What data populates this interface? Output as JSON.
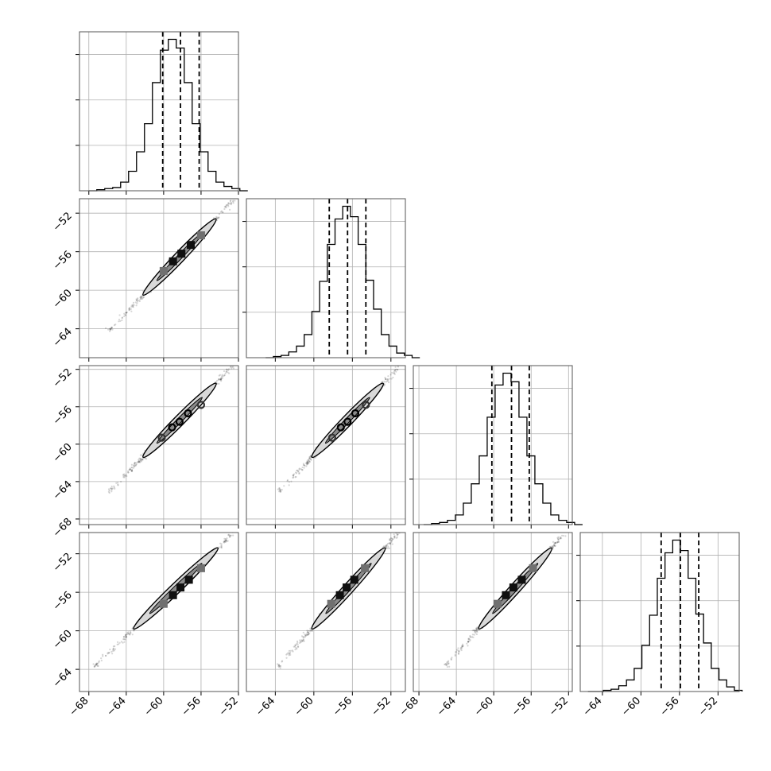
{
  "chart_data": {
    "type": "scatter",
    "figure_kind": "corner plot",
    "n_parameters": 4,
    "title": "",
    "grid": true,
    "tick_labels": {
      "x_col0": [
        "−68",
        "−64",
        "−60",
        "−56",
        "−52"
      ],
      "x_col1": [
        "−64",
        "−60",
        "−56",
        "−52"
      ],
      "x_col2": [
        "−68",
        "−64",
        "−60",
        "−56",
        "−52"
      ],
      "x_col3": [
        "−64",
        "−60",
        "−56",
        "−52"
      ],
      "y_row1": [
        "−52",
        "−56",
        "−60",
        "−64"
      ],
      "y_row2": [
        "−52",
        "−56",
        "−60",
        "−64",
        "−68"
      ],
      "y_row3": [
        "−52",
        "−56",
        "−60",
        "−64"
      ]
    },
    "parameters": [
      {
        "range": [
          -69,
          -52
        ],
        "quantiles": [
          -60.1,
          -58.2,
          -56.2
        ],
        "histogram": {
          "bin_start": -68.0,
          "bin_width": 0.85,
          "counts": [
            0,
            1,
            2,
            3,
            8,
            18,
            36,
            62,
            100,
            130,
            140,
            132,
            100,
            62,
            36,
            18,
            8,
            4,
            2,
            0
          ]
        }
      },
      {
        "range": [
          -67,
          -50.5
        ],
        "quantiles": [
          -58.4,
          -56.5,
          -54.6
        ],
        "histogram": {
          "bin_start": -65.0,
          "bin_width": 0.8,
          "counts": [
            0,
            1,
            2,
            5,
            10,
            20,
            40,
            66,
            98,
            120,
            131,
            122,
            98,
            67,
            42,
            20,
            10,
            4,
            2,
            0
          ]
        }
      },
      {
        "range": [
          -68.6,
          -51.6
        ],
        "quantiles": [
          -60.2,
          -58.1,
          -56.2
        ],
        "histogram": {
          "bin_start": -67.5,
          "bin_width": 0.85,
          "counts": [
            0,
            1,
            2,
            4,
            9,
            20,
            38,
            64,
            100,
            130,
            141,
            133,
            100,
            64,
            38,
            20,
            9,
            4,
            2,
            0
          ]
        }
      },
      {
        "range": [
          -66.3,
          -49.8
        ],
        "quantiles": [
          -57.9,
          -55.9,
          -54.0
        ],
        "histogram": {
          "bin_start": -65.5,
          "bin_width": 0.8,
          "counts": [
            0,
            0,
            1,
            2,
            5,
            10,
            20,
            40,
            66,
            98,
            120,
            131,
            122,
            98,
            67,
            42,
            20,
            10,
            4,
            1
          ]
        }
      }
    ],
    "pair_panels": [
      {
        "row": 1,
        "col": 0,
        "marker": "square",
        "ellipse": {
          "x1": -62.2,
          "y1": -60.5,
          "x2": -54.4,
          "y2": -52.6,
          "width": 1.0
        },
        "points": [
          [
            -60.0,
            -58.0
          ],
          [
            -59.0,
            -57.0
          ],
          [
            -58.1,
            -56.2
          ],
          [
            -57.1,
            -55.3
          ],
          [
            -56.0,
            -54.3
          ]
        ]
      },
      {
        "row": 2,
        "col": 0,
        "marker": "circle",
        "ellipse": {
          "x1": -62.2,
          "y1": -61.4,
          "x2": -54.4,
          "y2": -53.5,
          "width": 1.0
        },
        "points": [
          [
            -60.2,
            -59.3
          ],
          [
            -59.1,
            -58.2
          ],
          [
            -58.3,
            -57.6
          ],
          [
            -57.4,
            -56.7
          ],
          [
            -56.0,
            -55.8
          ]
        ]
      },
      {
        "row": 2,
        "col": 1,
        "marker": "circle",
        "ellipse": {
          "x1": -60.2,
          "y1": -61.4,
          "x2": -52.8,
          "y2": -53.5,
          "width": 1.0
        },
        "points": [
          [
            -58.1,
            -59.3
          ],
          [
            -57.2,
            -58.2
          ],
          [
            -56.5,
            -57.6
          ],
          [
            -55.7,
            -56.7
          ],
          [
            -54.6,
            -55.8
          ]
        ]
      },
      {
        "row": 3,
        "col": 0,
        "marker": "square",
        "ellipse": {
          "x1": -63.2,
          "y1": -59.8,
          "x2": -54.2,
          "y2": -51.4,
          "width": 1.0
        },
        "points": [
          [
            -60.0,
            -57.2
          ],
          [
            -59.0,
            -56.3
          ],
          [
            -58.2,
            -55.5
          ],
          [
            -57.3,
            -54.7
          ],
          [
            -56.0,
            -53.5
          ]
        ]
      },
      {
        "row": 3,
        "col": 1,
        "marker": "square",
        "ellipse": {
          "x1": -60.2,
          "y1": -59.8,
          "x2": -52.6,
          "y2": -51.4,
          "width": 1.0
        },
        "points": [
          [
            -58.2,
            -57.2
          ],
          [
            -57.3,
            -56.3
          ],
          [
            -56.6,
            -55.5
          ],
          [
            -55.8,
            -54.7
          ],
          [
            -54.7,
            -53.5
          ]
        ]
      },
      {
        "row": 3,
        "col": 2,
        "marker": "square",
        "ellipse": {
          "x1": -61.6,
          "y1": -59.8,
          "x2": -53.8,
          "y2": -51.4,
          "width": 1.0
        },
        "points": [
          [
            -59.6,
            -57.2
          ],
          [
            -58.7,
            -56.3
          ],
          [
            -57.9,
            -55.5
          ],
          [
            -57.0,
            -54.7
          ],
          [
            -55.8,
            -53.5
          ]
        ]
      }
    ]
  }
}
